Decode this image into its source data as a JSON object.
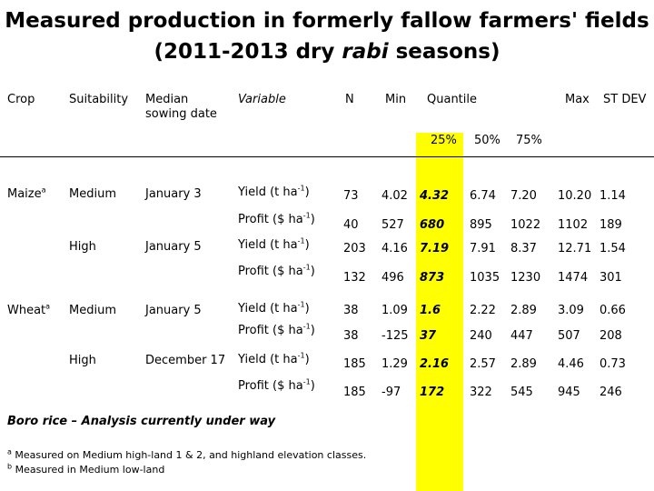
{
  "title": {
    "line1": "Measured production in formerly fallow farmers' fields",
    "line2_pre": "(2011-2013 dry ",
    "line2_em": "rabi",
    "line2_post": " seasons)"
  },
  "headers": {
    "crop": "Crop",
    "suitability": "Suitability",
    "median_1": "Median",
    "median_2": "sowing date",
    "variable": "Variable",
    "n": "N",
    "min": "Min",
    "quantile": "Quantile",
    "max": "Max",
    "stdev": "ST DEV",
    "q25": "25%",
    "q50": "50%",
    "q75": "75%"
  },
  "groups": {
    "maize": "Maize",
    "maize_sup": "a",
    "wheat": "Wheat",
    "wheat_sup": "a",
    "medium1": "Medium",
    "high1": "High",
    "medium2": "Medium",
    "high2": "High",
    "date1": "January 3",
    "date2": "January 5",
    "date3": "January 5",
    "date4": "December 17"
  },
  "rows": [
    {
      "variable": "Yield (t ha",
      "unit_exp": "-1",
      "close": ")",
      "n": "73",
      "min": "4.02",
      "q25": "4.32",
      "q50": "6.74",
      "q75": "7.20",
      "max": "10.20",
      "sd": "1.14"
    },
    {
      "variable": "Profit ($ ha",
      "unit_exp": "-1",
      "close": ")",
      "n": "40",
      "min": "527",
      "q25": "680",
      "q50": "895",
      "q75": "1022",
      "max": "1102",
      "sd": "189"
    },
    {
      "variable": "Yield (t ha",
      "unit_exp": "-1",
      "close": ")",
      "n": "203",
      "min": "4.16",
      "q25": "7.19",
      "q50": "7.91",
      "q75": "8.37",
      "max": "12.71",
      "sd": "1.54"
    },
    {
      "variable": "Profit ($ ha",
      "unit_exp": "-1",
      "close": ")",
      "n": "132",
      "min": "496",
      "q25": "873",
      "q50": "1035",
      "q75": "1230",
      "max": "1474",
      "sd": "301"
    },
    {
      "variable": "Yield (t ha",
      "unit_exp": "-1",
      "close": ")",
      "n": "38",
      "min": "1.09",
      "q25": "1.6",
      "q50": "2.22",
      "q75": "2.89",
      "max": "3.09",
      "sd": "0.66"
    },
    {
      "variable": "Profit ($ ha",
      "unit_exp": "-1",
      "close": ")",
      "n": "38",
      "min": "-125",
      "q25": "37",
      "q50": "240",
      "q75": "447",
      "max": "507",
      "sd": "208"
    },
    {
      "variable": "Yield (t ha",
      "unit_exp": "-1",
      "close": ")",
      "n": "185",
      "min": "1.29",
      "q25": "2.16",
      "q50": "2.57",
      "q75": "2.89",
      "max": "4.46",
      "sd": "0.73"
    },
    {
      "variable": "Profit ($ ha",
      "unit_exp": "-1",
      "close": ")",
      "n": "185",
      "min": "-97",
      "q25": "172",
      "q50": "322",
      "q75": "545",
      "max": "945",
      "sd": "246"
    }
  ],
  "boro": "Boro rice – Analysis currently under way",
  "footnotes": {
    "a_mark": "a",
    "a_text": " Measured on Medium high-land 1 & 2, and highland elevation classes.",
    "b_mark": "b",
    "b_text": " Measured in Medium low-land"
  },
  "highlight_color": "#ffff00"
}
